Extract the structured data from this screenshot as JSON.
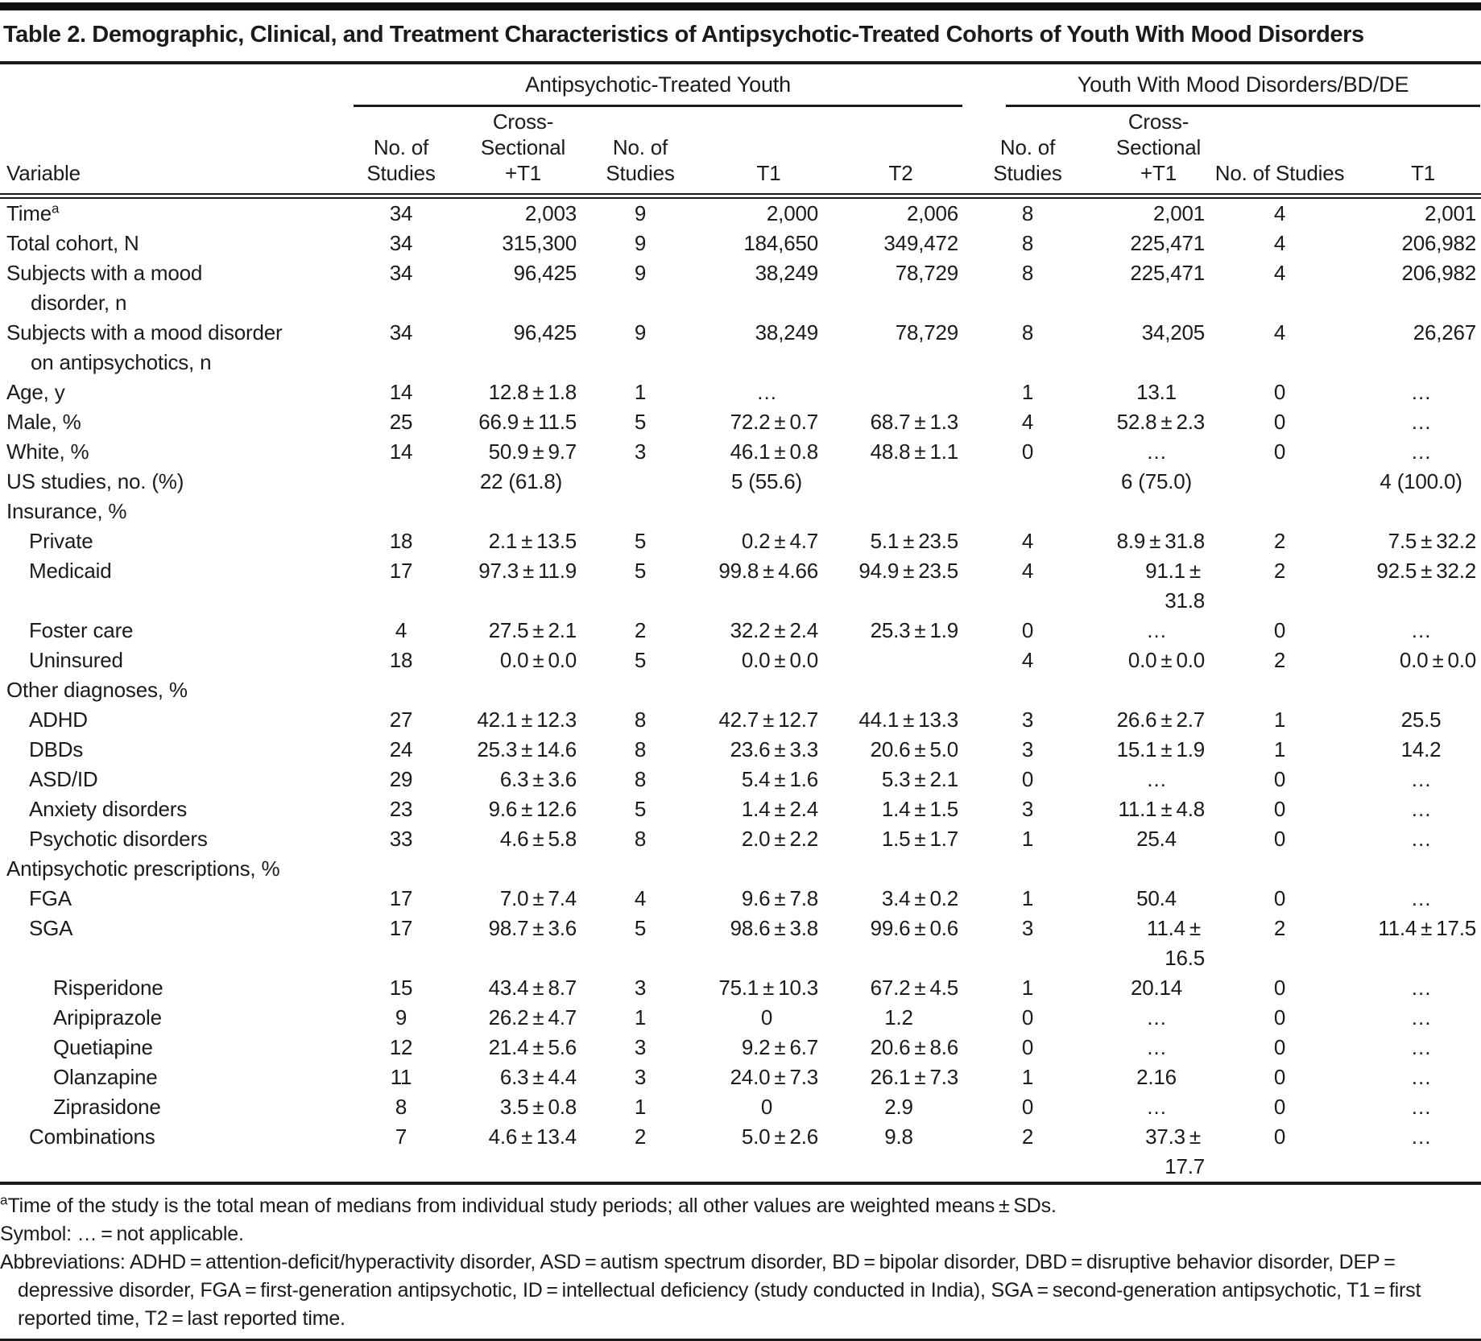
{
  "title": "Table 2. Demographic, Clinical, and Treatment Characteristics of Antipsychotic-Treated Cohorts of Youth With Mood Disorders",
  "table": {
    "group_headers": [
      {
        "label": "Antipsychotic-Treated Youth",
        "span": 5
      },
      {
        "label": "Youth With Mood Disorders/BD/DE",
        "span": 4
      }
    ],
    "columns": [
      "Variable",
      "No. of Studies",
      "Cross-Sectional +T1",
      "No. of Studies",
      "T1",
      "T2",
      "No. of Studies",
      "Cross-Sectional +T1",
      "No. of Studies",
      "T1"
    ],
    "rows": [
      {
        "label": "Time",
        "sup": "a",
        "indent": 0,
        "values": [
          "34",
          "2,003",
          "9",
          "2,000",
          "2,006",
          "8",
          "2,001",
          "4",
          "2,001"
        ]
      },
      {
        "label": "Total cohort, N",
        "indent": 0,
        "values": [
          "34",
          "315,300",
          "9",
          "184,650",
          "349,472",
          "8",
          "225,471",
          "4",
          "206,982"
        ]
      },
      {
        "lines": [
          "Subjects with a mood",
          "disorder, n"
        ],
        "indent": 0,
        "values": [
          "34",
          "96,425",
          "9",
          "38,249",
          "78,729",
          "8",
          "225,471",
          "4",
          "206,982"
        ]
      },
      {
        "lines": [
          "Subjects with a mood disorder",
          "on antipsychotics, n"
        ],
        "indent": 0,
        "values": [
          "34",
          "96,425",
          "9",
          "38,249",
          "78,729",
          "8",
          "34,205",
          "4",
          "26,267"
        ]
      },
      {
        "label": "Age, y",
        "indent": 0,
        "values": [
          "14",
          "12.8±1.8",
          "1",
          "…",
          "",
          "1",
          "13.1",
          "0",
          "…"
        ]
      },
      {
        "label": "Male, %",
        "indent": 0,
        "values": [
          "25",
          "66.9±11.5",
          "5",
          "72.2±0.7",
          "68.7±1.3",
          "4",
          "52.8±2.3",
          "0",
          "…"
        ]
      },
      {
        "label": "White, %",
        "indent": 0,
        "values": [
          "14",
          "50.9±9.7",
          "3",
          "46.1±0.8",
          "48.8±1.1",
          "0",
          "…",
          "0",
          "…"
        ]
      },
      {
        "label": "US studies, no. (%)",
        "indent": 0,
        "values": [
          "",
          "22 (61.8)",
          "",
          "5 (55.6)",
          "",
          "",
          "6 (75.0)",
          "",
          "4 (100.0)"
        ]
      },
      {
        "label": "Insurance, %",
        "indent": 0,
        "section": true
      },
      {
        "label": "Private",
        "indent": 1,
        "values": [
          "18",
          "2.1±13.5",
          "5",
          "0.2±4.7",
          "5.1±23.5",
          "4",
          "8.9±31.8",
          "2",
          "7.5±32.2"
        ]
      },
      {
        "label": "Medicaid",
        "indent": 1,
        "values": [
          "17",
          "97.3±11.9",
          "5",
          "99.8±4.66",
          "94.9±23.5",
          "4",
          "91.1±31.8",
          "2",
          "92.5±32.2"
        ]
      },
      {
        "label": "Foster care",
        "indent": 1,
        "values": [
          "4",
          "27.5±2.1",
          "2",
          "32.2±2.4",
          "25.3±1.9",
          "0",
          "…",
          "0",
          "…"
        ]
      },
      {
        "label": "Uninsured",
        "indent": 1,
        "values": [
          "18",
          "0.0±0.0",
          "5",
          "0.0±0.0",
          "",
          "4",
          "0.0±0.0",
          "2",
          "0.0±0.0"
        ]
      },
      {
        "label": "Other diagnoses, %",
        "indent": 0,
        "section": true
      },
      {
        "label": "ADHD",
        "indent": 1,
        "values": [
          "27",
          "42.1±12.3",
          "8",
          "42.7±12.7",
          "44.1±13.3",
          "3",
          "26.6±2.7",
          "1",
          "25.5"
        ]
      },
      {
        "label": "DBDs",
        "indent": 1,
        "values": [
          "24",
          "25.3±14.6",
          "8",
          "23.6±3.3",
          "20.6±5.0",
          "3",
          "15.1±1.9",
          "1",
          "14.2"
        ]
      },
      {
        "label": "ASD/ID",
        "indent": 1,
        "values": [
          "29",
          "6.3±3.6",
          "8",
          "5.4±1.6",
          "5.3±2.1",
          "0",
          "…",
          "0",
          "…"
        ]
      },
      {
        "label": "Anxiety disorders",
        "indent": 1,
        "values": [
          "23",
          "9.6±12.6",
          "5",
          "1.4±2.4",
          "1.4±1.5",
          "3",
          "11.1±4.8",
          "0",
          "…"
        ]
      },
      {
        "label": "Psychotic disorders",
        "indent": 1,
        "values": [
          "33",
          "4.6±5.8",
          "8",
          "2.0±2.2",
          "1.5±1.7",
          "1",
          "25.4",
          "0",
          "…"
        ]
      },
      {
        "label": "Antipsychotic prescriptions, %",
        "indent": 0,
        "section": true
      },
      {
        "label": "FGA",
        "indent": 1,
        "values": [
          "17",
          "7.0±7.4",
          "4",
          "9.6±7.8",
          "3.4±0.2",
          "1",
          "50.4",
          "0",
          "…"
        ]
      },
      {
        "label": "SGA",
        "indent": 1,
        "values": [
          "17",
          "98.7±3.6",
          "5",
          "98.6±3.8",
          "99.6±0.6",
          "3",
          "11.4±16.5",
          "2",
          "11.4±17.5"
        ]
      },
      {
        "label": "Risperidone",
        "indent": 2,
        "values": [
          "15",
          "43.4±8.7",
          "3",
          "75.1±10.3",
          "67.2±4.5",
          "1",
          "20.14",
          "0",
          "…"
        ]
      },
      {
        "label": "Aripiprazole",
        "indent": 2,
        "values": [
          "9",
          "26.2±4.7",
          "1",
          "0",
          "1.2",
          "0",
          "…",
          "0",
          "…"
        ]
      },
      {
        "label": "Quetiapine",
        "indent": 2,
        "values": [
          "12",
          "21.4±5.6",
          "3",
          "9.2±6.7",
          "20.6±8.6",
          "0",
          "…",
          "0",
          "…"
        ]
      },
      {
        "label": "Olanzapine",
        "indent": 2,
        "values": [
          "11",
          "6.3±4.4",
          "3",
          "24.0±7.3",
          "26.1±7.3",
          "1",
          "2.16",
          "0",
          "…"
        ]
      },
      {
        "label": "Ziprasidone",
        "indent": 2,
        "values": [
          "8",
          "3.5±0.8",
          "1",
          "0",
          "2.9",
          "0",
          "…",
          "0",
          "…"
        ]
      },
      {
        "label": "Combinations",
        "indent": 1,
        "values": [
          "7",
          "4.6±13.4",
          "2",
          "5.0±2.6",
          "9.8",
          "2",
          "37.3±17.7",
          "0",
          "…"
        ]
      }
    ],
    "footnotes": [
      {
        "sup": "a",
        "text": "Time of the study is the total mean of medians from individual study periods; all other values are weighted means ± SDs."
      },
      {
        "text": "Symbol: … = not applicable."
      },
      {
        "text": "Abbreviations: ADHD = attention-deficit/hyperactivity disorder, ASD = autism spectrum disorder, BD = bipolar disorder, DBD = disruptive behavior disorder, DEP = depressive disorder, FGA = first-generation antipsychotic, ID = intellectual deficiency (study conducted in India), SGA = second-generation antipsychotic, T1 = first reported time, T2 = last reported time."
      }
    ]
  },
  "colors": {
    "text": "#1b1b1b",
    "rule": "#1b1b1b",
    "background": "#ffffff"
  }
}
